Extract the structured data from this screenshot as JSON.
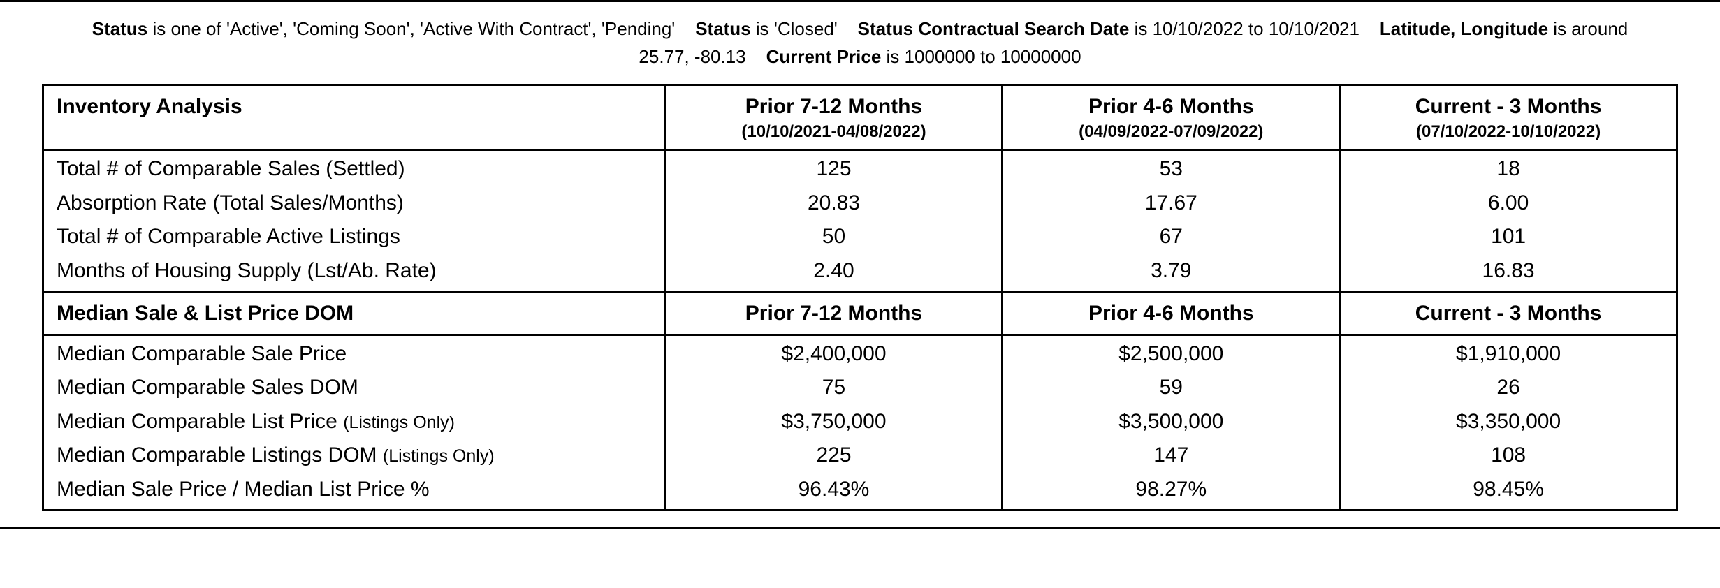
{
  "filters": {
    "status_label": "Status",
    "status_values": "is one of 'Active', 'Coming Soon', 'Active With Contract', 'Pending'",
    "status2_label": "Status",
    "status2_values": "is 'Closed'",
    "date_label": "Status Contractual Search Date",
    "date_values": "is 10/10/2022 to 10/10/2021",
    "latlng_label": "Latitude, Longitude",
    "latlng_values": "is around 25.77, -80.13",
    "price_label": "Current Price",
    "price_values": "is 1000000 to 10000000"
  },
  "columns": {
    "c1_title": "Prior 7-12 Months",
    "c1_range": "(10/10/2021-04/08/2022)",
    "c2_title": "Prior 4-6 Months",
    "c2_range": "(04/09/2022-07/09/2022)",
    "c3_title": "Current - 3 Months",
    "c3_range": "(07/10/2022-10/10/2022)"
  },
  "section1": {
    "header": "Inventory Analysis",
    "rows": {
      "r1": {
        "label": "Total # of Comparable Sales (Settled)",
        "c1": "125",
        "c2": "53",
        "c3": "18"
      },
      "r2": {
        "label": "Absorption Rate (Total Sales/Months)",
        "c1": "20.83",
        "c2": "17.67",
        "c3": "6.00"
      },
      "r3": {
        "label": "Total # of Comparable Active Listings",
        "c1": "50",
        "c2": "67",
        "c3": "101"
      },
      "r4": {
        "label": "Months of Housing Supply (Lst/Ab. Rate)",
        "c1": "2.40",
        "c2": "3.79",
        "c3": "16.83"
      }
    }
  },
  "section2": {
    "header": "Median Sale & List Price DOM",
    "col1": "Prior 7-12 Months",
    "col2": "Prior 4-6 Months",
    "col3": "Current - 3 Months",
    "rows": {
      "r1": {
        "label": "Median Comparable Sale Price",
        "c1": "$2,400,000",
        "c2": "$2,500,000",
        "c3": "$1,910,000"
      },
      "r2": {
        "label": "Median Comparable Sales DOM",
        "c1": "75",
        "c2": "59",
        "c3": "26"
      },
      "r3": {
        "label_a": "Median Comparable List Price ",
        "label_b": "(Listings Only)",
        "c1": "$3,750,000",
        "c2": "$3,500,000",
        "c3": "$3,350,000"
      },
      "r4": {
        "label_a": "Median Comparable Listings DOM ",
        "label_b": "(Listings Only)",
        "c1": "225",
        "c2": "147",
        "c3": "108"
      },
      "r5": {
        "label": "Median Sale Price / Median List Price %",
        "c1": "96.43%",
        "c2": "98.27%",
        "c3": "98.45%"
      }
    }
  }
}
